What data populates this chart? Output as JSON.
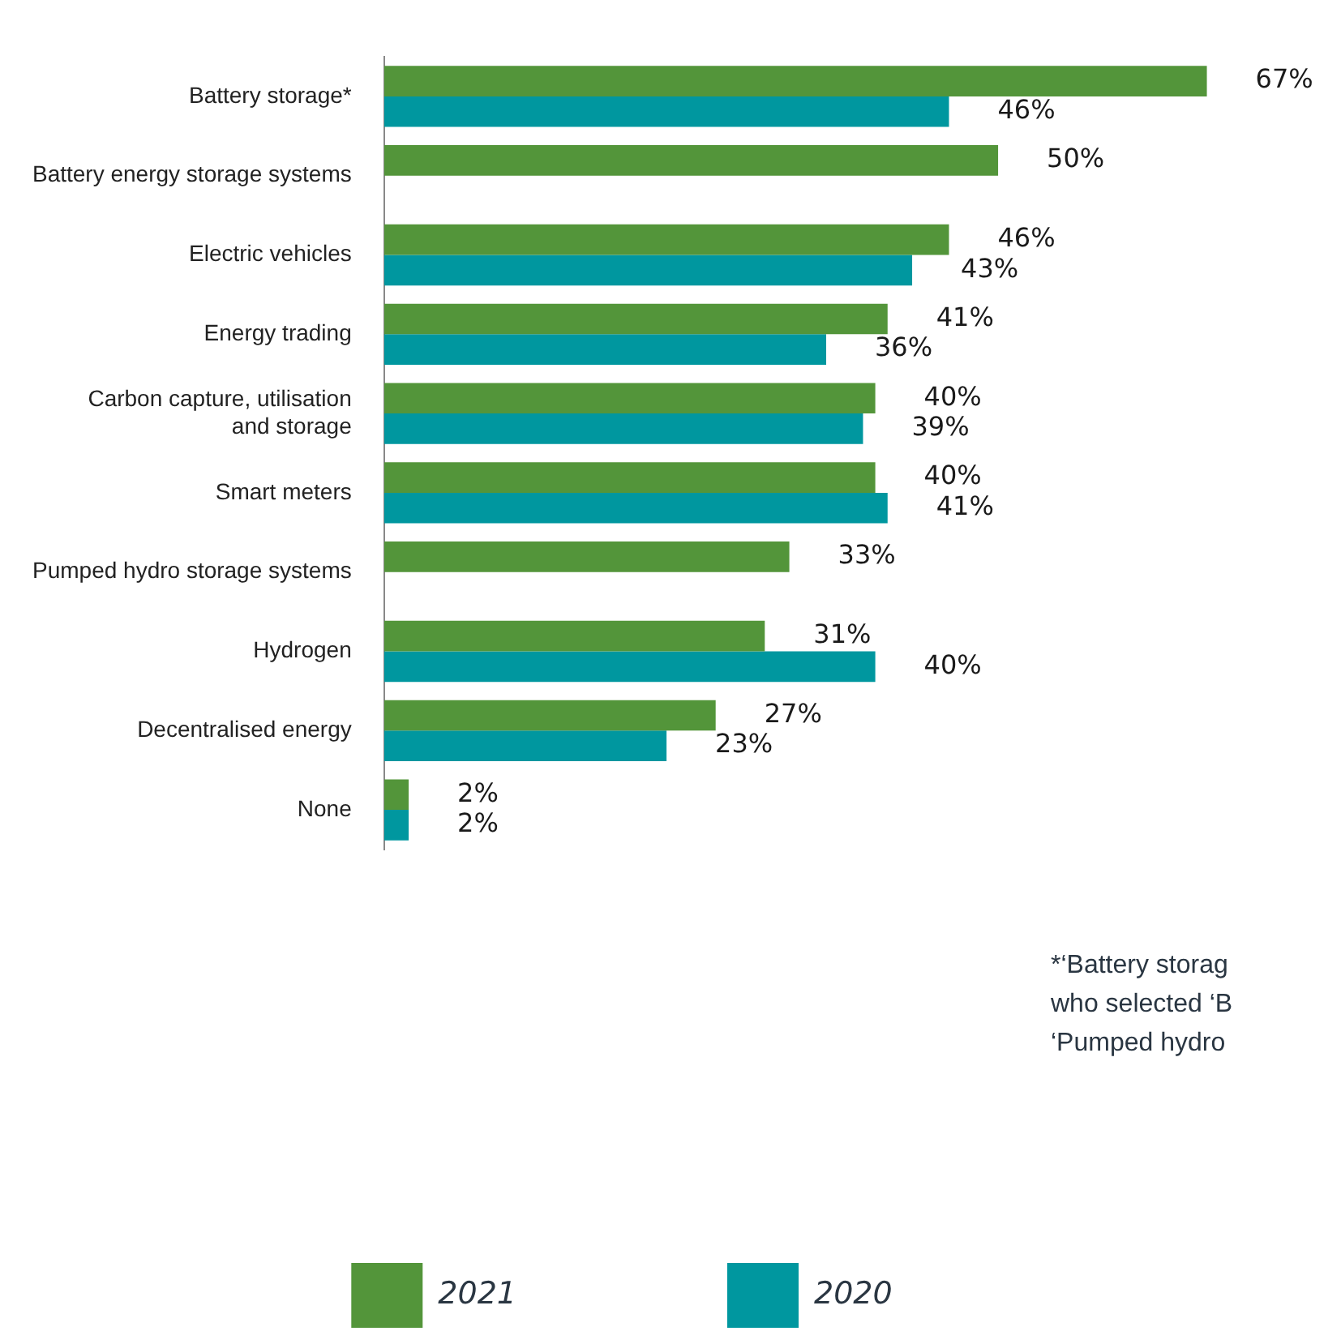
{
  "chart_data": {
    "type": "bar",
    "orientation": "horizontal",
    "categories": [
      "Battery storage*",
      "Battery energy storage systems",
      "Electric vehicles",
      "Energy trading",
      "Carbon capture, utilisation and storage",
      "Smart meters",
      "Pumped hydro storage systems",
      "Hydrogen",
      "Decentralised energy",
      "None"
    ],
    "series": [
      {
        "name": "2021",
        "color": "#53953a",
        "values": [
          67,
          50,
          46,
          41,
          40,
          40,
          33,
          31,
          27,
          2
        ],
        "value_labels": [
          "67%",
          "50%",
          "46%",
          "41%",
          "40%",
          "40%",
          "33%",
          "31%",
          "27%",
          "2%"
        ]
      },
      {
        "name": "2020",
        "color": "#00979f",
        "values": [
          46,
          null,
          43,
          36,
          39,
          41,
          null,
          40,
          23,
          2
        ],
        "value_labels": [
          "46%",
          null,
          "43%",
          "36%",
          "39%",
          "41%",
          null,
          "40%",
          "23%",
          "2%"
        ]
      }
    ],
    "tick_labels": "y",
    "grid": false,
    "legend": "bottom",
    "annotations": [
      "*‘Battery storag",
      "who selected ‘B",
      "‘Pumped hydro"
    ]
  }
}
